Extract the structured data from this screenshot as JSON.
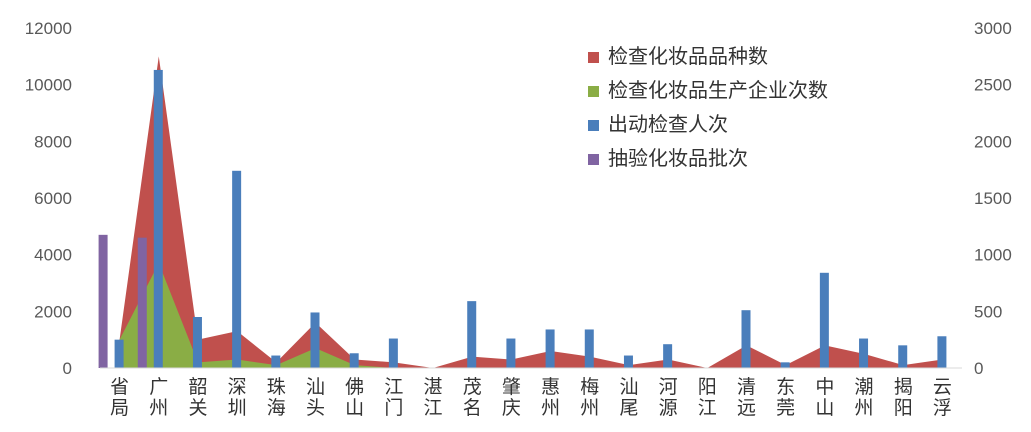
{
  "chart_data": {
    "type": "bar",
    "categories": [
      "省局",
      "广州",
      "韶关",
      "深圳",
      "珠海",
      "汕头",
      "佛山",
      "江门",
      "湛江",
      "茂名",
      "肇庆",
      "惠州",
      "梅州",
      "汕尾",
      "河源",
      "阳江",
      "清远",
      "东莞",
      "中山",
      "潮州",
      "揭阳",
      "云浮"
    ],
    "y_left": {
      "ylim": [
        0,
        12000
      ],
      "ticks": [
        "0",
        "2000",
        "4000",
        "6000",
        "8000",
        "10000",
        "12000"
      ]
    },
    "y_right": {
      "ylim": [
        0,
        3000
      ],
      "ticks": [
        "0",
        "500",
        "1000",
        "1500",
        "2000",
        "2500",
        "3000"
      ]
    },
    "legend_position": "top-right",
    "series": [
      {
        "name": "检查化妆品品种数",
        "type": "area",
        "axis": "left",
        "color": "#C0504D",
        "values": [
          1000,
          11000,
          1000,
          1300,
          200,
          1600,
          300,
          200,
          0,
          400,
          300,
          600,
          400,
          100,
          300,
          0,
          800,
          100,
          800,
          500,
          100,
          300
        ]
      },
      {
        "name": "检查化妆品生产企业次数",
        "type": "area",
        "axis": "left",
        "color": "#8AAD45",
        "values": [
          1000,
          3700,
          200,
          300,
          100,
          700,
          100,
          0,
          0,
          0,
          0,
          0,
          0,
          0,
          0,
          0,
          0,
          0,
          0,
          0,
          0,
          0
        ]
      },
      {
        "name": "出动检查人次",
        "type": "bar",
        "axis": "right",
        "color": "#4A7EBB",
        "values": [
          250,
          2630,
          450,
          1740,
          110,
          490,
          130,
          260,
          0,
          590,
          260,
          340,
          340,
          110,
          210,
          0,
          510,
          50,
          840,
          260,
          200,
          280
        ]
      },
      {
        "name": "抽验化妆品批次",
        "type": "bar",
        "axis": "left",
        "color": "#8064A2",
        "values": [
          4700,
          4600,
          0,
          0,
          0,
          0,
          0,
          0,
          0,
          0,
          0,
          0,
          0,
          0,
          0,
          0,
          0,
          0,
          0,
          0,
          0,
          0
        ]
      }
    ]
  }
}
